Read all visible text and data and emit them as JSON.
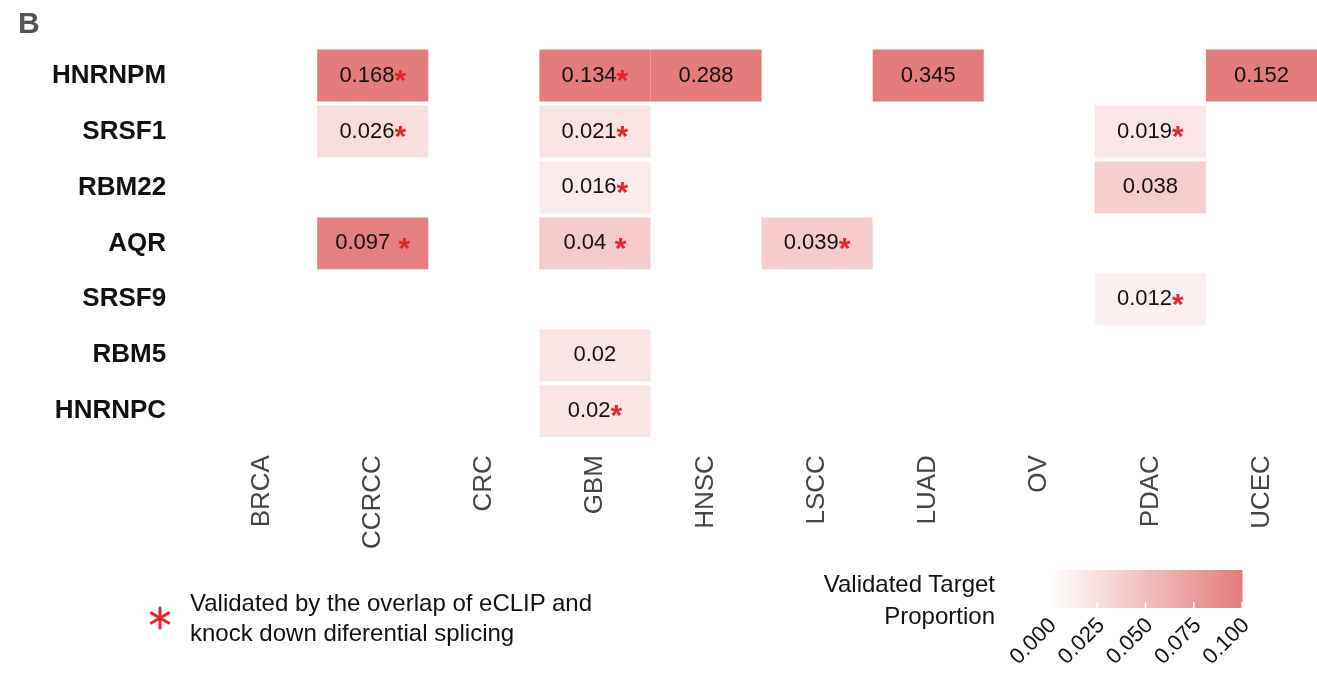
{
  "chart_data": {
    "type": "heatmap",
    "title": "B",
    "categories": [
      "BRCA",
      "CCRCC",
      "CRC",
      "GBM",
      "HNSC",
      "LSCC",
      "LUAD",
      "OV",
      "PDAC",
      "UCEC"
    ],
    "y_categories": [
      "HNRNPM",
      "SRSF1",
      "RBM22",
      "AQR",
      "SRSF9",
      "RBM5",
      "HNRNPC"
    ],
    "cells": [
      [
        null,
        0.168,
        null,
        0.134,
        0.288,
        null,
        0.345,
        null,
        null,
        0.152
      ],
      [
        null,
        0.026,
        null,
        0.021,
        null,
        null,
        null,
        null,
        0.019,
        null
      ],
      [
        null,
        null,
        null,
        0.016,
        null,
        null,
        null,
        null,
        0.038,
        null
      ],
      [
        null,
        0.097,
        null,
        0.04,
        null,
        0.039,
        null,
        null,
        null,
        null
      ],
      [
        null,
        null,
        null,
        null,
        null,
        null,
        null,
        null,
        0.012,
        null
      ],
      [
        null,
        null,
        null,
        0.02,
        null,
        null,
        null,
        null,
        null,
        null
      ],
      [
        null,
        null,
        null,
        0.02,
        null,
        null,
        null,
        null,
        null,
        null
      ]
    ],
    "cell_labels": [
      [
        null,
        "0.168*",
        null,
        "0.134*",
        "0.288",
        null,
        "0.345",
        null,
        null,
        "0.152"
      ],
      [
        null,
        "0.026*",
        null,
        "0.021*",
        null,
        null,
        null,
        null,
        "0.019*",
        null
      ],
      [
        null,
        null,
        null,
        "0.016*",
        null,
        null,
        null,
        null,
        "0.038",
        null
      ],
      [
        null,
        "0.097 *",
        null,
        "0.04 *",
        null,
        "0.039*",
        null,
        null,
        null,
        null
      ],
      [
        null,
        null,
        null,
        null,
        null,
        null,
        null,
        null,
        "0.012*",
        null
      ],
      [
        null,
        null,
        null,
        "0.02",
        null,
        null,
        null,
        null,
        null,
        null
      ],
      [
        null,
        null,
        null,
        "0.02*",
        null,
        null,
        null,
        null,
        null,
        null
      ]
    ],
    "clabel": "Validated Target Proportion",
    "clim": [
      0,
      0.1
    ],
    "cticks": [
      {
        "value": 0,
        "label": "0.000"
      },
      {
        "value": 0.025,
        "label": "0.025"
      },
      {
        "value": 0.05,
        "label": "0.050"
      },
      {
        "value": 0.075,
        "label": "0.075"
      },
      {
        "value": 0.1,
        "label": "0.100"
      }
    ],
    "annotations": [
      "Validated by the overlap of eCLIP and knock down diferential splicing"
    ]
  }
}
